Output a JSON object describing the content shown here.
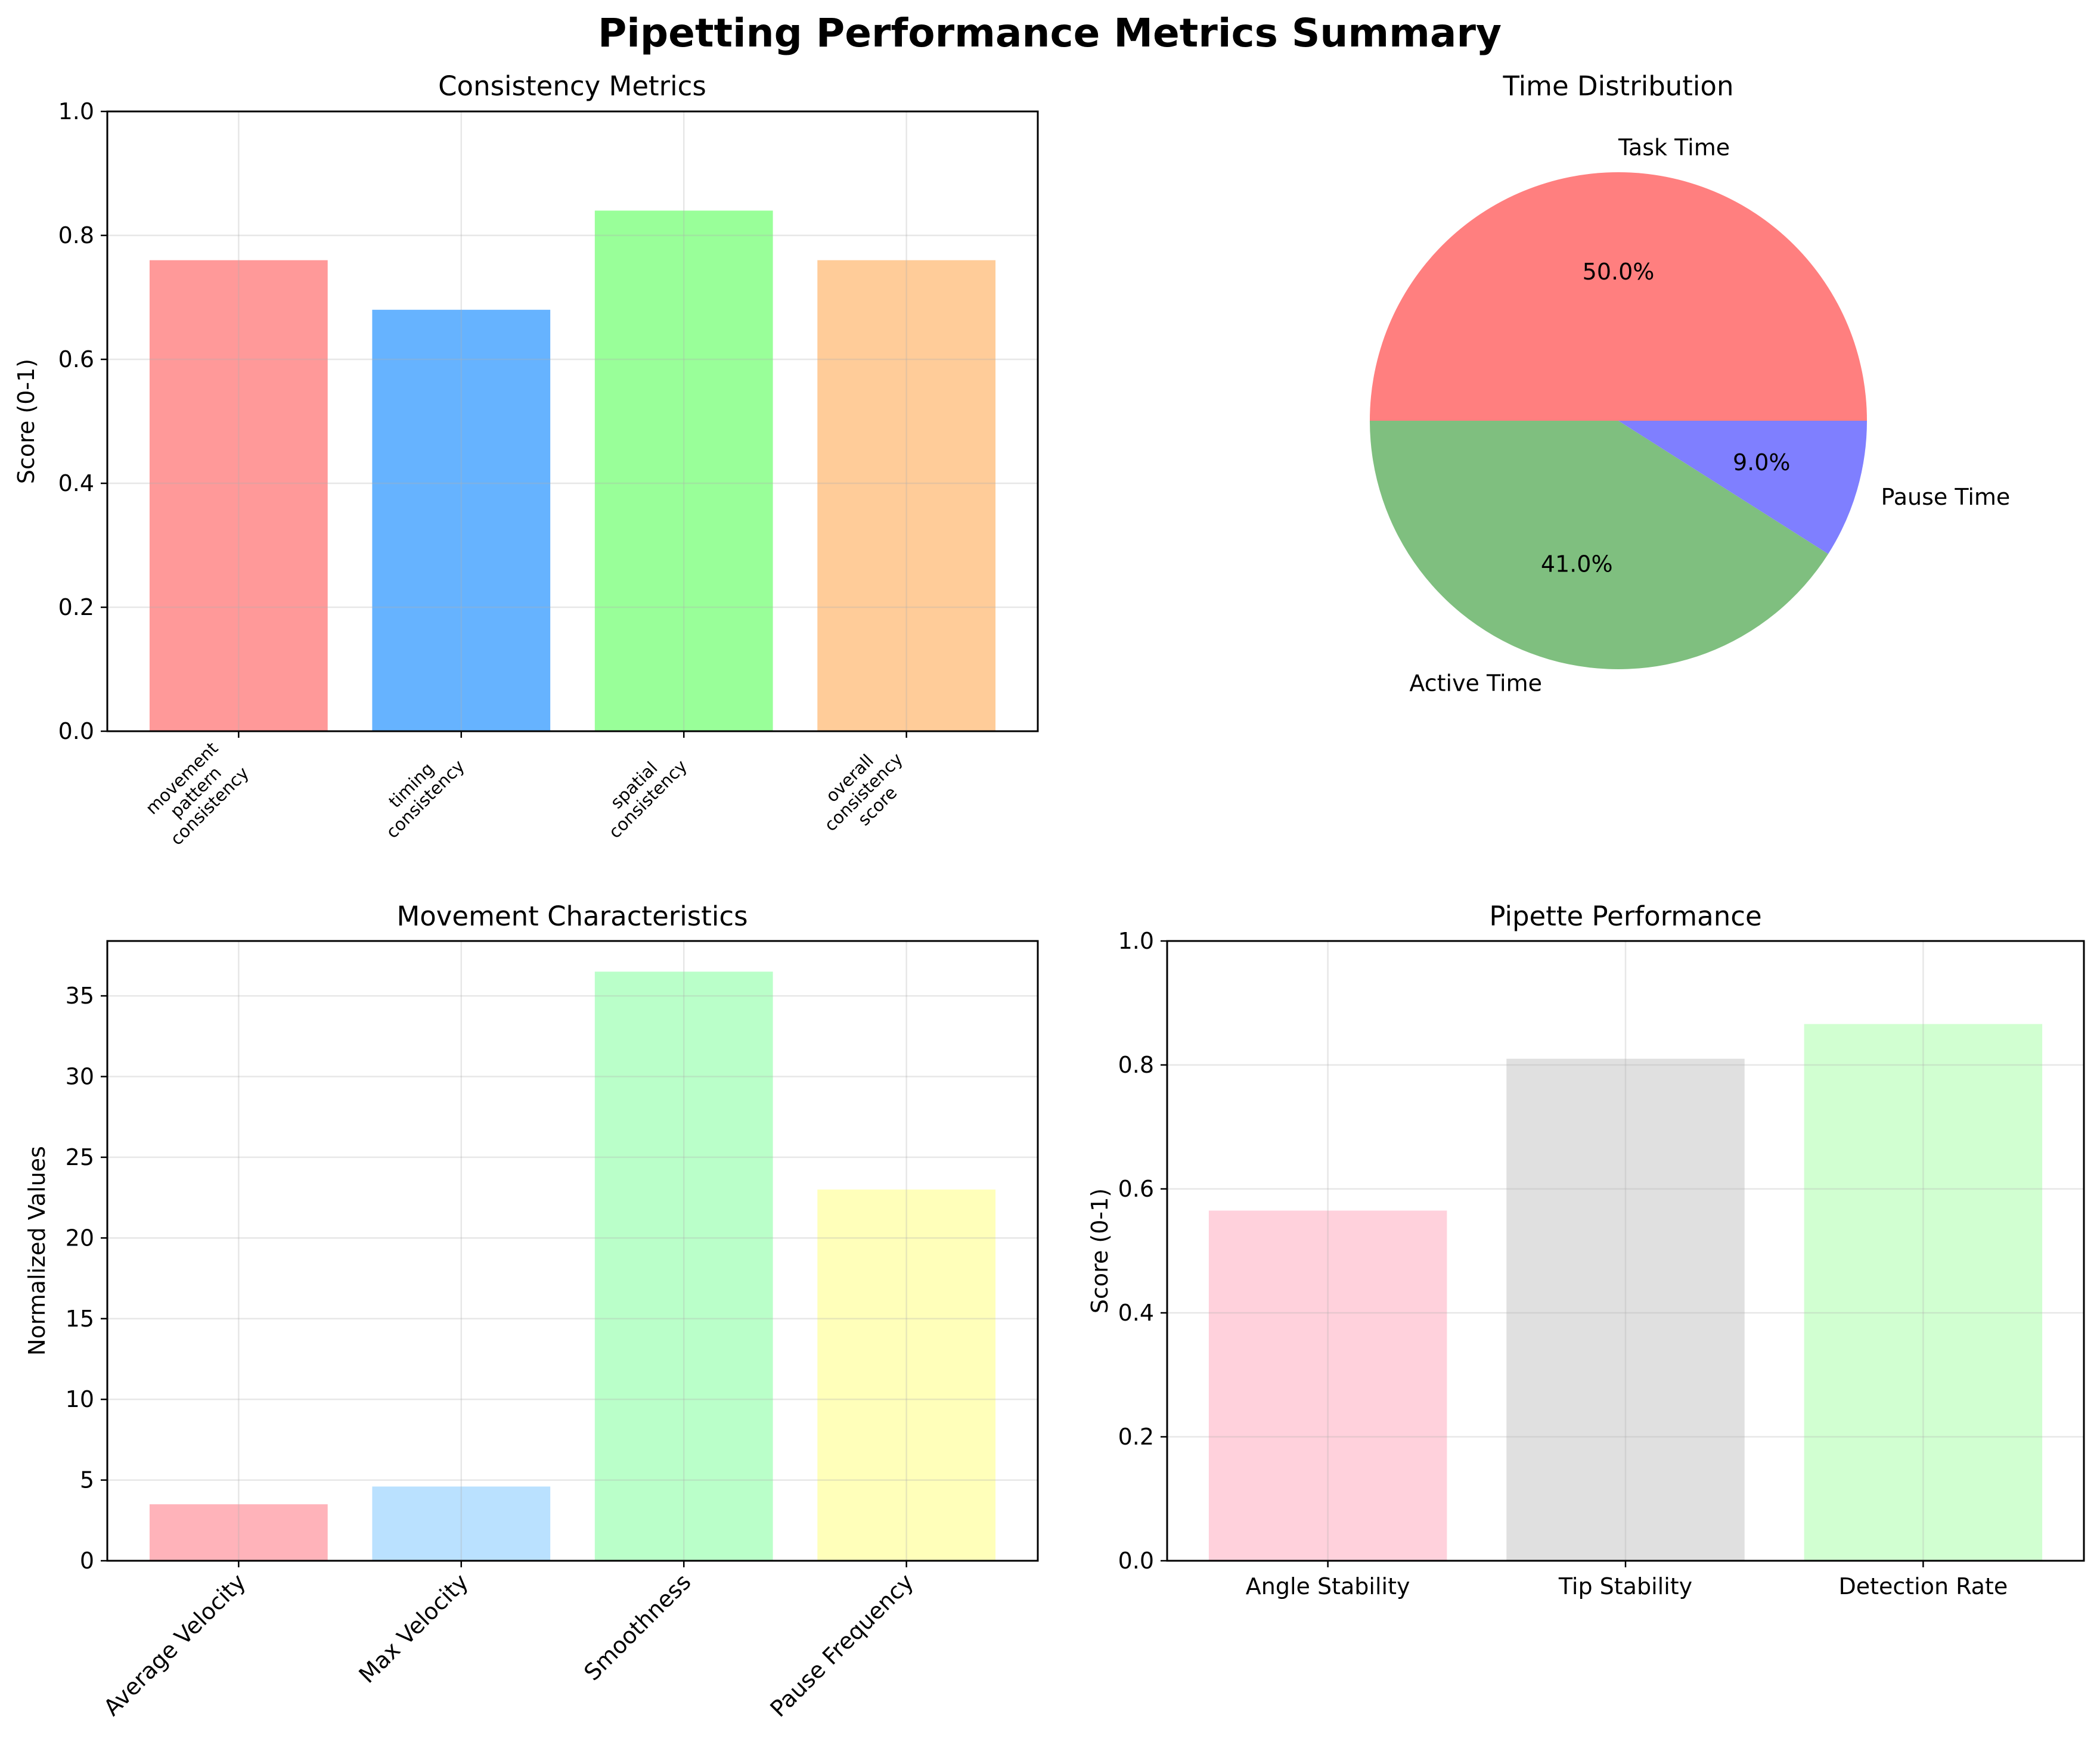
{
  "figure": {
    "title": "Pipetting Performance Metrics Summary"
  },
  "chart_data": [
    {
      "id": "consistency",
      "type": "bar",
      "title": "Consistency Metrics",
      "xlabel": "",
      "ylabel": "Score (0-1)",
      "ylim": [
        0,
        1
      ],
      "yticks": [
        0.0,
        0.2,
        0.4,
        0.6,
        0.8,
        1.0
      ],
      "ytick_labels": [
        "0.0",
        "0.2",
        "0.4",
        "0.6",
        "0.8",
        "1.0"
      ],
      "grid": true,
      "categories": [
        [
          "movement",
          "pattern",
          "consistency"
        ],
        [
          "timing",
          "consistency"
        ],
        [
          "spatial",
          "consistency"
        ],
        [
          "overall",
          "consistency",
          "score"
        ]
      ],
      "values": [
        0.76,
        0.68,
        0.84,
        0.76
      ],
      "colors": [
        "#ff9999",
        "#66b3ff",
        "#99ff99",
        "#ffcc99"
      ]
    },
    {
      "id": "time",
      "type": "pie",
      "title": "Time Distribution",
      "labels": [
        "Task Time",
        "Active Time",
        "Pause Time"
      ],
      "values": [
        50.0,
        41.0,
        9.0
      ],
      "autopct": [
        "50.0%",
        "41.0%",
        "9.0%"
      ],
      "colors": [
        "#ff7f7f",
        "#7fbf7f",
        "#7f7fff"
      ]
    },
    {
      "id": "movement",
      "type": "bar",
      "title": "Movement Characteristics",
      "xlabel": "",
      "ylabel": "Normalized Values",
      "ylim": [
        0,
        38.4
      ],
      "yticks": [
        0,
        5,
        10,
        15,
        20,
        25,
        30,
        35
      ],
      "ytick_labels": [
        "0",
        "5",
        "10",
        "15",
        "20",
        "25",
        "30",
        "35"
      ],
      "grid": true,
      "categories": [
        "Average Velocity",
        "Max Velocity",
        "Smoothness",
        "Pause Frequency"
      ],
      "values": [
        3.5,
        4.6,
        36.5,
        23.0
      ],
      "colors": [
        "#ffb3ba",
        "#bae1ff",
        "#baffc9",
        "#ffffba"
      ]
    },
    {
      "id": "pipette",
      "type": "bar",
      "title": "Pipette Performance",
      "xlabel": "",
      "ylabel": "Score (0-1)",
      "ylim": [
        0,
        1
      ],
      "yticks": [
        0.0,
        0.2,
        0.4,
        0.6,
        0.8,
        1.0
      ],
      "ytick_labels": [
        "0.0",
        "0.2",
        "0.4",
        "0.6",
        "0.8",
        "1.0"
      ],
      "grid": true,
      "categories": [
        "Angle Stability",
        "Tip Stability",
        "Detection Rate"
      ],
      "values": [
        0.565,
        0.81,
        0.866
      ],
      "colors": [
        "#ffd1dc",
        "#e0e0e0",
        "#d1ffd1"
      ]
    }
  ]
}
